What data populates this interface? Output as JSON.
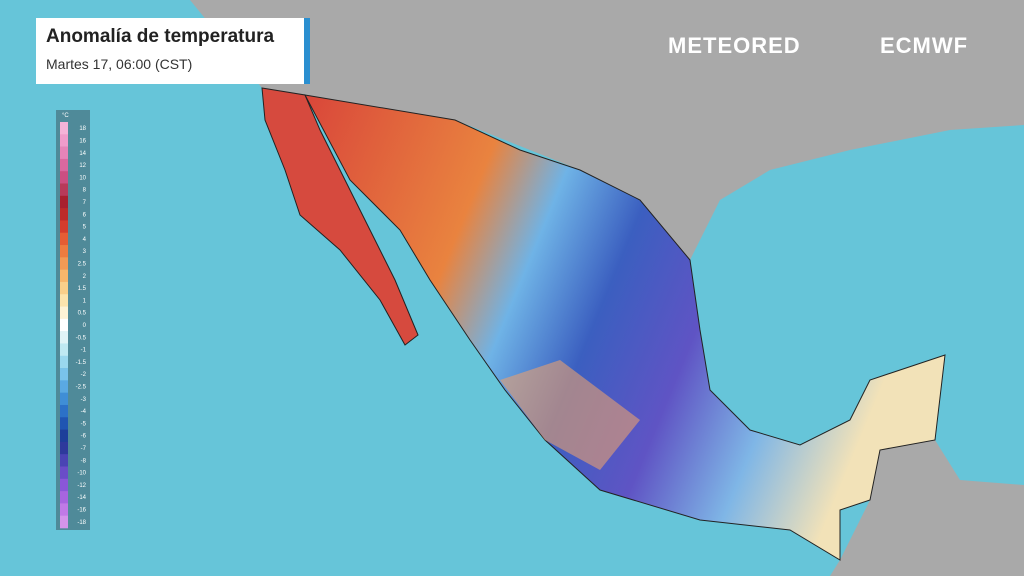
{
  "header": {
    "title": "Anomalía de temperatura",
    "subtitle": "Martes 17, 06:00 (CST)"
  },
  "logos": {
    "meteored": "METEORED",
    "ecmwf": "ECMWF"
  },
  "legend": {
    "unit": "°C",
    "entries": [
      {
        "label": 18,
        "color": "#f4b3d8"
      },
      {
        "label": 16,
        "color": "#ee9ccb"
      },
      {
        "label": 14,
        "color": "#e484b8"
      },
      {
        "label": 12,
        "color": "#d9689f"
      },
      {
        "label": 10,
        "color": "#cc4f82"
      },
      {
        "label": 8,
        "color": "#b83a5a"
      },
      {
        "label": 7,
        "color": "#a8202f"
      },
      {
        "label": 6,
        "color": "#bd2a2a"
      },
      {
        "label": 5,
        "color": "#d43d2c"
      },
      {
        "label": 4,
        "color": "#e55d34"
      },
      {
        "label": 3,
        "color": "#ee7c40"
      },
      {
        "label": 2.5,
        "color": "#f29a55"
      },
      {
        "label": 2,
        "color": "#f6b66b"
      },
      {
        "label": 1.5,
        "color": "#f8cf8a"
      },
      {
        "label": 1,
        "color": "#fbe4ad"
      },
      {
        "label": 0.5,
        "color": "#fdf3d6"
      },
      {
        "label": 0,
        "color": "#ffffff"
      },
      {
        "label": -0.5,
        "color": "#e0f4f7"
      },
      {
        "label": -1,
        "color": "#bfe9f2"
      },
      {
        "label": -1.5,
        "color": "#9ad8ee"
      },
      {
        "label": -2,
        "color": "#79c3ea"
      },
      {
        "label": -2.5,
        "color": "#5aa9e2"
      },
      {
        "label": -3,
        "color": "#3f8ed6"
      },
      {
        "label": -4,
        "color": "#2c71c7"
      },
      {
        "label": -5,
        "color": "#2055b2"
      },
      {
        "label": -6,
        "color": "#1d3f9a"
      },
      {
        "label": -7,
        "color": "#2e3a9c"
      },
      {
        "label": -8,
        "color": "#4a44b4"
      },
      {
        "label": -10,
        "color": "#6a4dc8"
      },
      {
        "label": -12,
        "color": "#8a57d8"
      },
      {
        "label": -14,
        "color": "#a765df"
      },
      {
        "label": -16,
        "color": "#c07ae6"
      },
      {
        "label": -18,
        "color": "#d394ea"
      }
    ]
  }
}
